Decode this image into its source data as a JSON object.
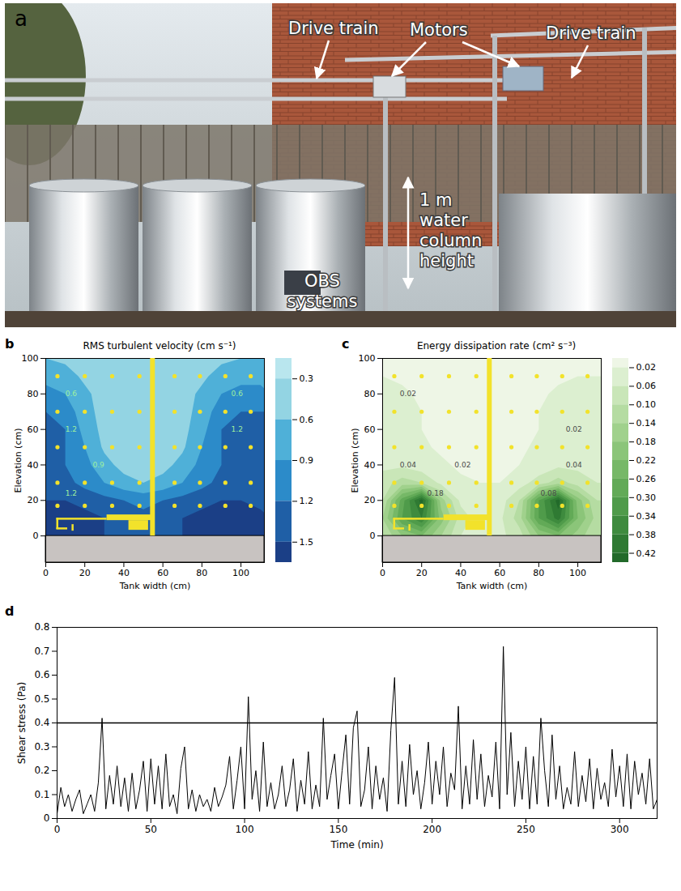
{
  "photo": {
    "panel_label": "a",
    "labels": [
      "Drive train",
      "Motors",
      "Drive train",
      "1 m water column height",
      "OBS systems"
    ]
  },
  "chart_data": [
    {
      "type": "contour",
      "panel_label": "b",
      "title": "RMS turbulent velocity (cm s⁻¹)",
      "x_label": "Tank width (cm)",
      "y_label": "Elevation (cm)",
      "xlim": [
        0,
        112
      ],
      "ylim": [
        -15,
        100
      ],
      "xticks": [
        0,
        20,
        40,
        60,
        80,
        100
      ],
      "yticks": [
        0,
        20,
        40,
        60,
        80,
        100
      ],
      "grid_x": [
        0,
        10,
        20,
        30,
        40,
        50,
        60,
        70,
        80,
        90,
        100,
        110
      ],
      "grid_y": [
        0,
        10,
        20,
        30,
        40,
        50,
        60,
        70,
        80,
        90,
        100
      ],
      "cells": [
        [
          1.6,
          1.7,
          1.6,
          1.5,
          1.4,
          1.4,
          1.4,
          1.5,
          1.6,
          1.7,
          1.7,
          1.6
        ],
        [
          1.6,
          1.7,
          1.6,
          1.5,
          1.4,
          1.3,
          1.4,
          1.5,
          1.6,
          1.7,
          1.6,
          1.6
        ],
        [
          1.5,
          1.5,
          1.4,
          1.3,
          1.2,
          1.1,
          1.2,
          1.3,
          1.4,
          1.5,
          1.5,
          1.4
        ],
        [
          1.3,
          1.3,
          1.1,
          0.9,
          0.7,
          0.6,
          0.7,
          0.9,
          1.1,
          1.3,
          1.3,
          1.3
        ],
        [
          1.3,
          1.2,
          1.0,
          0.7,
          0.5,
          0.45,
          0.5,
          0.7,
          1.0,
          1.2,
          1.3,
          1.3
        ],
        [
          1.3,
          1.2,
          0.9,
          0.55,
          0.45,
          0.4,
          0.45,
          0.55,
          0.9,
          1.2,
          1.3,
          1.3
        ],
        [
          1.3,
          1.2,
          0.8,
          0.5,
          0.4,
          0.4,
          0.4,
          0.5,
          0.8,
          1.2,
          1.3,
          1.3
        ],
        [
          1.2,
          1.1,
          0.7,
          0.5,
          0.4,
          0.4,
          0.4,
          0.5,
          0.7,
          1.1,
          1.2,
          1.2
        ],
        [
          1.0,
          0.9,
          0.65,
          0.5,
          0.4,
          0.4,
          0.4,
          0.5,
          0.65,
          0.9,
          1.0,
          1.0
        ],
        [
          0.8,
          0.7,
          0.55,
          0.45,
          0.4,
          0.4,
          0.4,
          0.45,
          0.55,
          0.7,
          0.8,
          0.8
        ],
        [
          0.6,
          0.55,
          0.5,
          0.45,
          0.4,
          0.4,
          0.4,
          0.45,
          0.5,
          0.55,
          0.6,
          0.6
        ]
      ],
      "colorbar": {
        "lim": [
          0.15,
          1.65
        ],
        "ticks": [
          0.3,
          0.6,
          0.9,
          1.2,
          1.5
        ],
        "colors": [
          "#b9e6ee",
          "#93d4e3",
          "#4fb0d8",
          "#2c8bc9",
          "#1f5fa6",
          "#1b3f86"
        ]
      },
      "points_x": [
        6,
        20,
        34,
        48,
        66,
        79,
        92,
        105
      ],
      "points_y": [
        17,
        30,
        50,
        70,
        90
      ],
      "contour_labels": [
        {
          "x": 13,
          "y": 80,
          "text": "0.6"
        },
        {
          "x": 13,
          "y": 60,
          "text": "1.2"
        },
        {
          "x": 27,
          "y": 40,
          "text": "0.9"
        },
        {
          "x": 13,
          "y": 24,
          "text": "1.2"
        },
        {
          "x": 98,
          "y": 80,
          "text": "0.6"
        },
        {
          "x": 98,
          "y": 60,
          "text": "1.2"
        }
      ]
    },
    {
      "type": "contour",
      "panel_label": "c",
      "title": "Energy dissipation rate (cm² s⁻³)",
      "x_label": "Tank width (cm)",
      "y_label": "Elevation (cm)",
      "xlim": [
        0,
        112
      ],
      "ylim": [
        -15,
        100
      ],
      "xticks": [
        0,
        20,
        40,
        60,
        80,
        100
      ],
      "yticks": [
        0,
        20,
        40,
        60,
        80,
        100
      ],
      "grid_x": [
        0,
        10,
        20,
        30,
        40,
        50,
        60,
        70,
        80,
        90,
        100,
        110
      ],
      "grid_y": [
        0,
        10,
        20,
        30,
        40,
        50,
        60,
        70,
        80,
        90,
        100
      ],
      "cells": [
        [
          0.1,
          0.18,
          0.22,
          0.14,
          0.06,
          0.04,
          0.05,
          0.08,
          0.18,
          0.22,
          0.16,
          0.1
        ],
        [
          0.14,
          0.3,
          0.38,
          0.2,
          0.08,
          0.04,
          0.05,
          0.12,
          0.3,
          0.4,
          0.22,
          0.12
        ],
        [
          0.1,
          0.28,
          0.44,
          0.16,
          0.05,
          0.03,
          0.04,
          0.1,
          0.3,
          0.44,
          0.2,
          0.1
        ],
        [
          0.08,
          0.12,
          0.1,
          0.05,
          0.025,
          0.02,
          0.02,
          0.04,
          0.08,
          0.12,
          0.08,
          0.06
        ],
        [
          0.05,
          0.05,
          0.035,
          0.025,
          0.015,
          0.015,
          0.015,
          0.02,
          0.03,
          0.05,
          0.05,
          0.04
        ],
        [
          0.03,
          0.03,
          0.025,
          0.015,
          0.012,
          0.012,
          0.012,
          0.015,
          0.025,
          0.03,
          0.03,
          0.03
        ],
        [
          0.025,
          0.025,
          0.02,
          0.012,
          0.01,
          0.01,
          0.01,
          0.012,
          0.02,
          0.025,
          0.025,
          0.025
        ],
        [
          0.025,
          0.025,
          0.02,
          0.012,
          0.01,
          0.01,
          0.01,
          0.012,
          0.02,
          0.025,
          0.025,
          0.025
        ],
        [
          0.022,
          0.022,
          0.018,
          0.012,
          0.01,
          0.01,
          0.01,
          0.012,
          0.018,
          0.022,
          0.022,
          0.022
        ],
        [
          0.02,
          0.018,
          0.015,
          0.012,
          0.01,
          0.01,
          0.01,
          0.012,
          0.015,
          0.018,
          0.02,
          0.02
        ],
        [
          0.018,
          0.016,
          0.014,
          0.012,
          0.01,
          0.01,
          0.01,
          0.012,
          0.014,
          0.016,
          0.018,
          0.018
        ]
      ],
      "colorbar": {
        "lim": [
          0,
          0.44
        ],
        "ticks": [
          0.02,
          0.06,
          {
            "value": 0.1,
            "label": "0.10"
          },
          0.14,
          0.18,
          0.22,
          0.26,
          {
            "value": 0.3,
            "label": "0.30"
          },
          0.34,
          0.38,
          0.42
        ],
        "colors": [
          "#eef6e6",
          "#dcefd0",
          "#c9e6b8",
          "#b5dca2",
          "#a0d18c",
          "#8bc579",
          "#76b867",
          "#62aa57",
          "#4f9b4a",
          "#3e8b3e",
          "#2f7a33",
          "#226a2a"
        ]
      },
      "points_x": [
        6,
        20,
        34,
        48,
        66,
        79,
        92,
        105
      ],
      "points_y": [
        17,
        30,
        50,
        70,
        90
      ],
      "contour_labels": [
        {
          "x": 13,
          "y": 80,
          "text": "0.02"
        },
        {
          "x": 98,
          "y": 60,
          "text": "0.02"
        },
        {
          "x": 13,
          "y": 40,
          "text": "0.04"
        },
        {
          "x": 27,
          "y": 24,
          "text": "0.18"
        },
        {
          "x": 41,
          "y": 40,
          "text": "0.02"
        },
        {
          "x": 85,
          "y": 24,
          "text": "0.08"
        },
        {
          "x": 98,
          "y": 40,
          "text": "0.04"
        }
      ]
    },
    {
      "type": "line",
      "panel_label": "d",
      "x_label": "Time (min)",
      "y_label": "Shear stress (Pa)",
      "xlim": [
        0,
        320
      ],
      "ylim": [
        0,
        0.8
      ],
      "xticks": [
        0,
        50,
        100,
        150,
        200,
        250,
        300
      ],
      "yticks": [
        0,
        0.1,
        0.2,
        0.3,
        0.4,
        0.5,
        0.6,
        0.7,
        0.8
      ],
      "reference_line": 0.4,
      "color": "#000000",
      "x": [
        0,
        2,
        4,
        6,
        8,
        10,
        12,
        14,
        16,
        18,
        20,
        22,
        24,
        26,
        28,
        30,
        32,
        34,
        36,
        38,
        40,
        42,
        44,
        46,
        48,
        50,
        52,
        54,
        56,
        58,
        60,
        62,
        64,
        66,
        68,
        70,
        72,
        74,
        76,
        78,
        80,
        82,
        84,
        86,
        88,
        90,
        92,
        94,
        96,
        98,
        100,
        102,
        104,
        106,
        108,
        110,
        112,
        114,
        116,
        118,
        120,
        122,
        124,
        126,
        128,
        130,
        132,
        134,
        136,
        138,
        140,
        142,
        144,
        146,
        148,
        150,
        152,
        154,
        156,
        158,
        160,
        162,
        164,
        166,
        168,
        170,
        172,
        174,
        176,
        178,
        180,
        182,
        184,
        186,
        188,
        190,
        192,
        194,
        196,
        198,
        200,
        202,
        204,
        206,
        208,
        210,
        212,
        214,
        216,
        218,
        220,
        222,
        224,
        226,
        228,
        230,
        232,
        234,
        236,
        238,
        240,
        242,
        244,
        246,
        248,
        250,
        252,
        254,
        256,
        258,
        260,
        262,
        264,
        266,
        268,
        270,
        272,
        274,
        276,
        278,
        280,
        282,
        284,
        286,
        288,
        290,
        292,
        294,
        296,
        298,
        300,
        302,
        304,
        306,
        308,
        310,
        312,
        314,
        316,
        318,
        320
      ],
      "values": [
        0.02,
        0.13,
        0.05,
        0.1,
        0.03,
        0.08,
        0.12,
        0.02,
        0.06,
        0.1,
        0.03,
        0.15,
        0.42,
        0.04,
        0.18,
        0.06,
        0.22,
        0.05,
        0.17,
        0.03,
        0.19,
        0.04,
        0.12,
        0.24,
        0.03,
        0.25,
        0.06,
        0.22,
        0.04,
        0.27,
        0.05,
        0.1,
        0.02,
        0.21,
        0.3,
        0.04,
        0.12,
        0.03,
        0.1,
        0.05,
        0.08,
        0.03,
        0.13,
        0.05,
        0.09,
        0.14,
        0.26,
        0.04,
        0.16,
        0.3,
        0.04,
        0.51,
        0.08,
        0.2,
        0.03,
        0.32,
        0.05,
        0.15,
        0.04,
        0.1,
        0.22,
        0.05,
        0.12,
        0.25,
        0.03,
        0.16,
        0.06,
        0.28,
        0.04,
        0.14,
        0.05,
        0.42,
        0.08,
        0.18,
        0.27,
        0.04,
        0.2,
        0.35,
        0.06,
        0.38,
        0.45,
        0.05,
        0.12,
        0.3,
        0.04,
        0.22,
        0.08,
        0.17,
        0.03,
        0.37,
        0.59,
        0.06,
        0.24,
        0.05,
        0.31,
        0.1,
        0.2,
        0.04,
        0.15,
        0.32,
        0.06,
        0.24,
        0.1,
        0.3,
        0.05,
        0.19,
        0.12,
        0.47,
        0.04,
        0.22,
        0.06,
        0.33,
        0.08,
        0.27,
        0.05,
        0.18,
        0.09,
        0.32,
        0.04,
        0.72,
        0.1,
        0.36,
        0.05,
        0.24,
        0.08,
        0.3,
        0.04,
        0.26,
        0.06,
        0.42,
        0.2,
        0.05,
        0.35,
        0.08,
        0.22,
        0.04,
        0.13,
        0.06,
        0.28,
        0.05,
        0.18,
        0.07,
        0.25,
        0.04,
        0.21,
        0.08,
        0.15,
        0.05,
        0.29,
        0.09,
        0.22,
        0.05,
        0.27,
        0.04,
        0.24,
        0.1,
        0.19,
        0.06,
        0.25,
        0.04,
        0.08
      ]
    }
  ]
}
